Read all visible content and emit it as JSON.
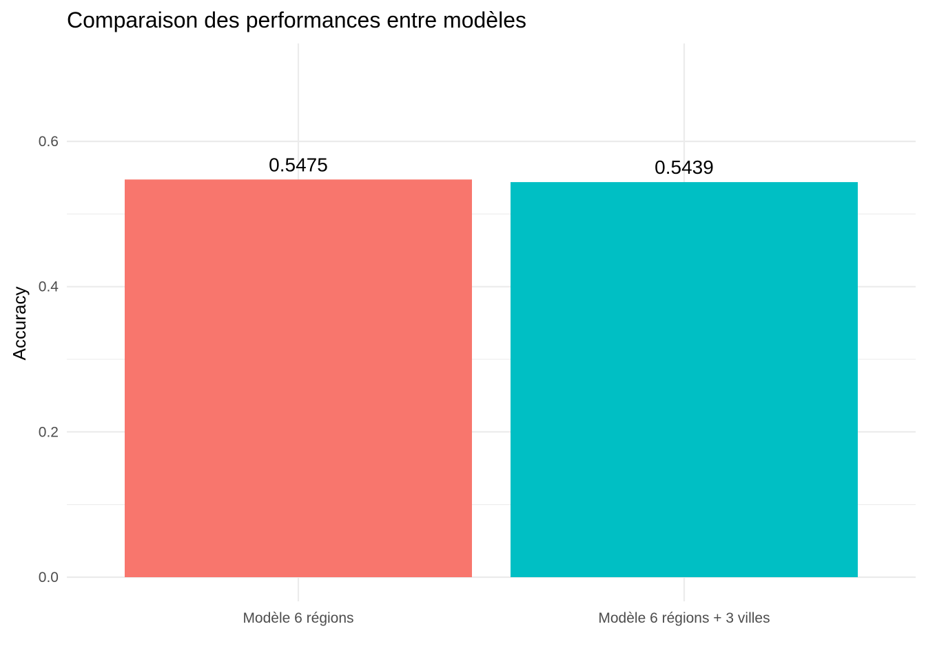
{
  "chart_data": {
    "type": "bar",
    "title": "Comparaison des performances entre modèles",
    "xlabel": "",
    "ylabel": "Accuracy",
    "categories": [
      "Modèle 6 régions",
      "Modèle 6 régions + 3 villes"
    ],
    "values": [
      0.5475,
      0.5439
    ],
    "value_labels": [
      "0.5475",
      "0.5439"
    ],
    "colors": [
      "#F8766D",
      "#00BFC4"
    ],
    "ylim": [
      0,
      0.7
    ],
    "yticks": [
      0.0,
      0.2,
      0.4,
      0.6
    ],
    "ytick_labels": [
      "0.0",
      "0.2",
      "0.4",
      "0.6"
    ],
    "grid": true,
    "legend": "none"
  }
}
